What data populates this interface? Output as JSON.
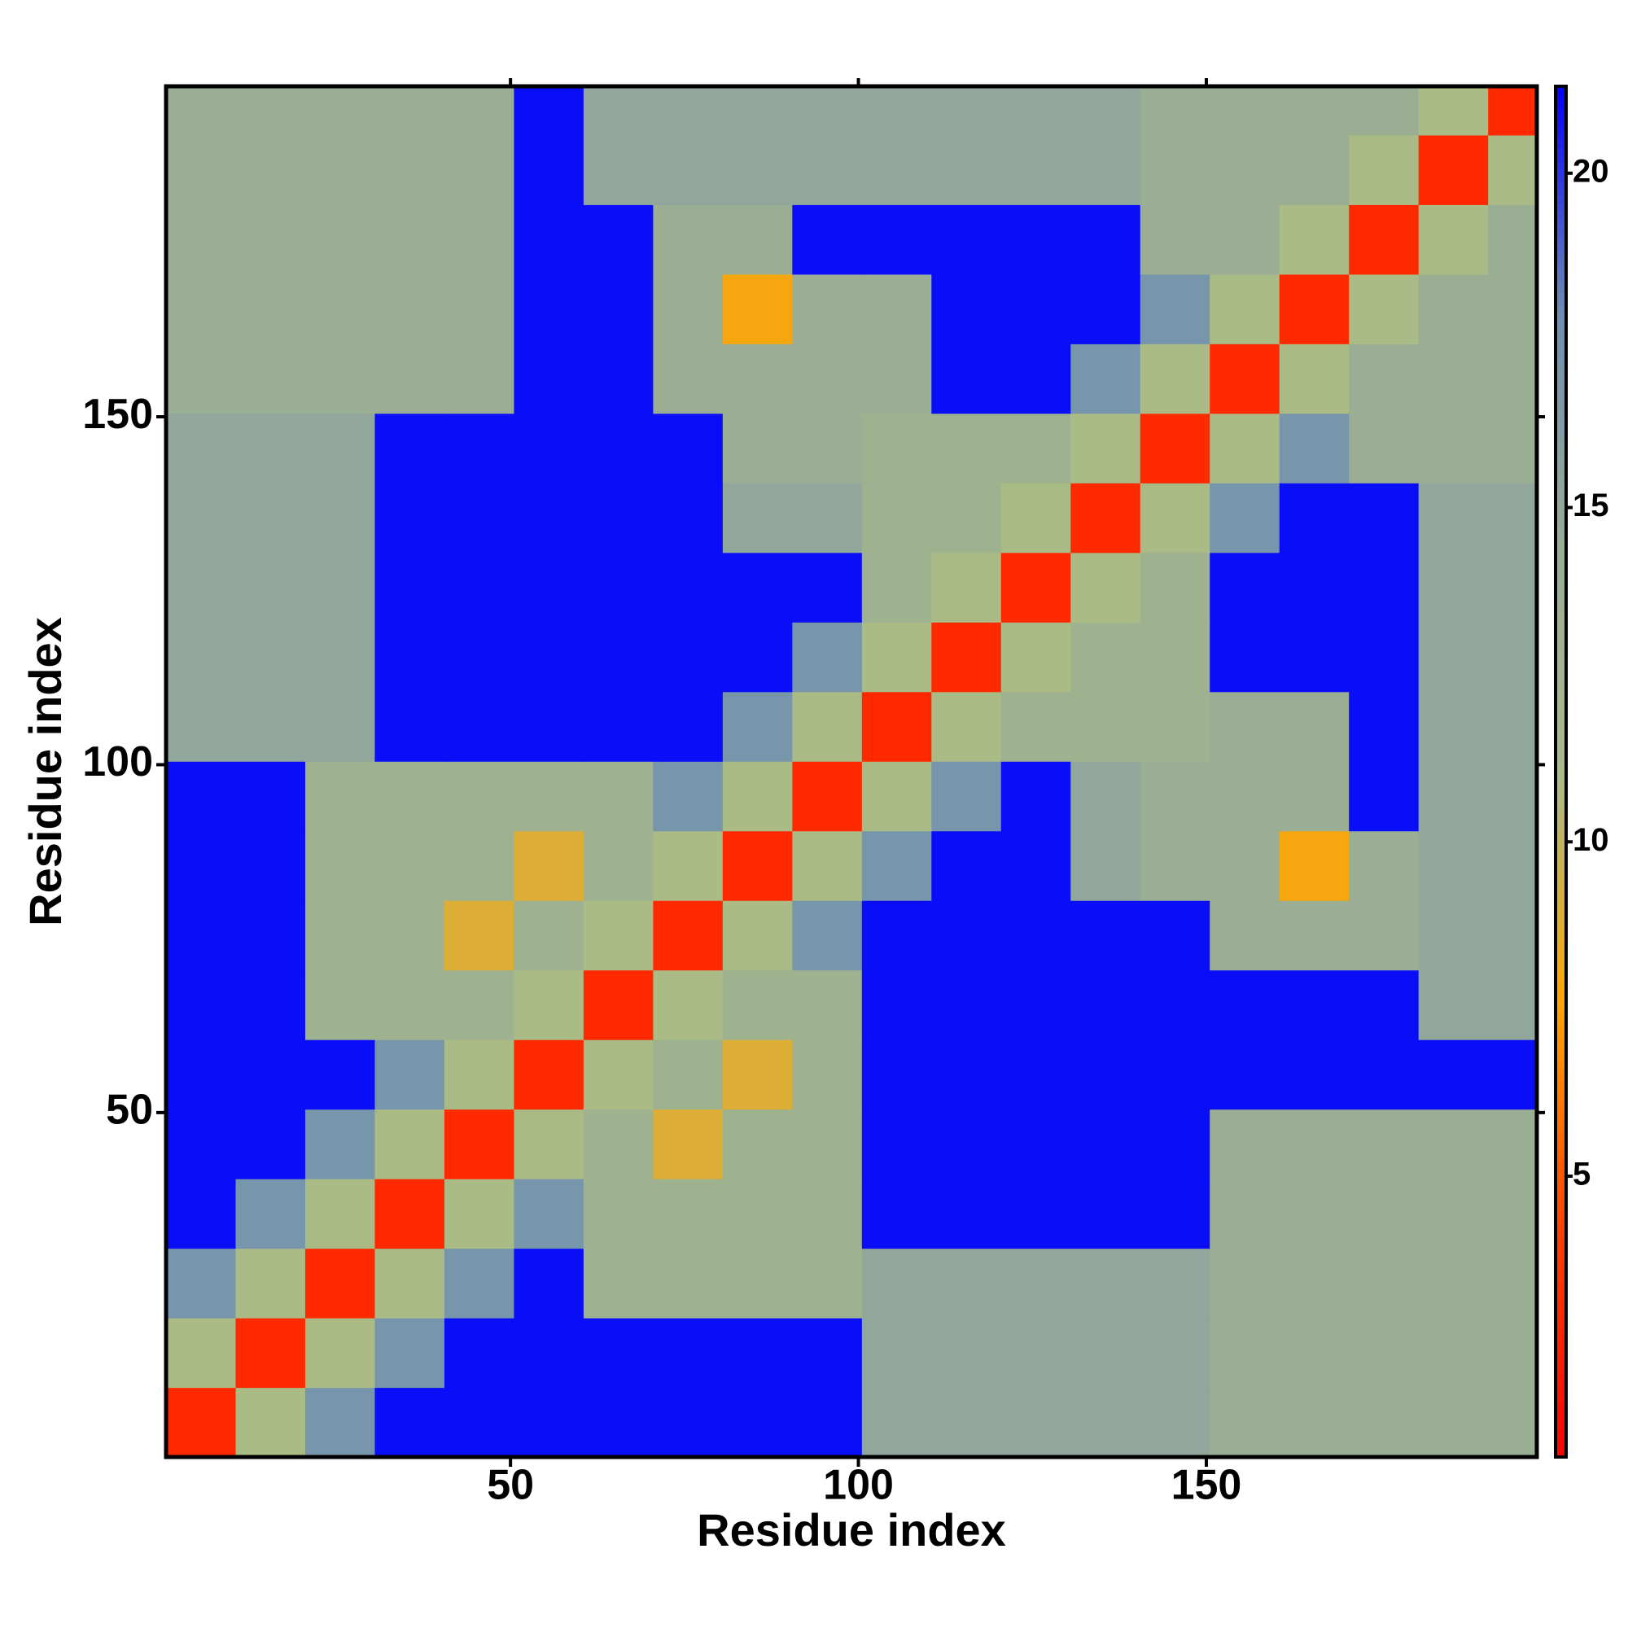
{
  "chart_data": {
    "type": "heatmap",
    "xlabel": "Residue index",
    "ylabel": "Residue index",
    "x": [
      5.5,
      15.5,
      25.5,
      35.5,
      45.5,
      55.5,
      65.5,
      75.5,
      85.5,
      95.5,
      105.5,
      115.5,
      125.5,
      135.5,
      145.5,
      155.5,
      165.5,
      175.5,
      185.5,
      195.5
    ],
    "y": [
      5.5,
      15.5,
      25.5,
      35.5,
      45.5,
      55.5,
      65.5,
      75.5,
      85.5,
      95.5,
      105.5,
      115.5,
      125.5,
      135.5,
      145.5,
      155.5,
      165.5,
      175.5,
      185.5,
      195.5
    ],
    "values": [
      [
        3,
        11,
        17,
        21,
        21,
        21,
        21,
        21,
        21,
        21,
        15,
        15,
        15,
        15,
        15,
        14,
        14,
        14,
        14,
        14
      ],
      [
        11,
        3,
        11,
        17,
        21,
        21,
        21,
        21,
        21,
        21,
        15,
        15,
        15,
        15,
        15,
        14,
        14,
        14,
        14,
        14
      ],
      [
        17,
        11,
        3,
        11,
        17,
        21,
        13,
        13,
        13,
        13,
        15,
        15,
        15,
        15,
        15,
        14,
        14,
        14,
        14,
        14
      ],
      [
        21,
        17,
        11,
        3,
        11,
        17,
        13,
        13,
        13,
        13,
        21,
        21,
        21,
        21,
        21,
        14,
        14,
        14,
        14,
        14
      ],
      [
        21,
        21,
        17,
        11,
        3,
        11,
        13,
        9,
        13,
        13,
        21,
        21,
        21,
        21,
        21,
        14,
        14,
        14,
        14,
        14
      ],
      [
        21,
        21,
        21,
        17,
        11,
        3,
        11,
        13,
        9,
        13,
        21,
        21,
        21,
        21,
        21,
        21,
        21,
        21,
        21,
        21
      ],
      [
        21,
        21,
        13,
        13,
        13,
        11,
        3,
        11,
        13,
        13,
        21,
        21,
        21,
        21,
        21,
        21,
        21,
        21,
        15,
        15
      ],
      [
        21,
        21,
        13,
        13,
        9,
        13,
        11,
        3,
        11,
        17,
        21,
        21,
        21,
        21,
        21,
        14,
        14,
        14,
        15,
        15
      ],
      [
        21,
        21,
        13,
        13,
        13,
        9,
        13,
        11,
        3,
        11,
        17,
        21,
        21,
        15,
        14,
        14,
        8,
        14,
        15,
        15
      ],
      [
        21,
        21,
        13,
        13,
        13,
        13,
        13,
        17,
        11,
        3,
        11,
        17,
        21,
        15,
        14,
        14,
        14,
        21,
        15,
        15
      ],
      [
        15,
        15,
        15,
        21,
        21,
        21,
        21,
        21,
        17,
        11,
        3,
        11,
        13,
        13,
        13,
        14,
        14,
        21,
        15,
        15
      ],
      [
        15,
        15,
        15,
        21,
        21,
        21,
        21,
        21,
        21,
        17,
        11,
        3,
        11,
        13,
        13,
        21,
        21,
        21,
        15,
        15
      ],
      [
        15,
        15,
        15,
        21,
        21,
        21,
        21,
        21,
        21,
        21,
        13,
        11,
        3,
        11,
        13,
        21,
        21,
        21,
        15,
        15
      ],
      [
        15,
        15,
        15,
        21,
        21,
        21,
        21,
        21,
        15,
        15,
        13,
        13,
        11,
        3,
        11,
        17,
        21,
        21,
        15,
        15
      ],
      [
        15,
        15,
        15,
        21,
        21,
        21,
        21,
        21,
        14,
        14,
        13,
        13,
        13,
        11,
        3,
        11,
        17,
        14,
        14,
        14
      ],
      [
        14,
        14,
        14,
        14,
        14,
        21,
        21,
        14,
        14,
        14,
        14,
        21,
        21,
        17,
        11,
        3,
        11,
        14,
        14,
        14
      ],
      [
        14,
        14,
        14,
        14,
        14,
        21,
        21,
        14,
        8,
        14,
        14,
        21,
        21,
        21,
        17,
        11,
        3,
        11,
        14,
        14
      ],
      [
        14,
        14,
        14,
        14,
        14,
        21,
        21,
        14,
        14,
        21,
        21,
        21,
        21,
        21,
        14,
        14,
        11,
        3,
        11,
        14
      ],
      [
        14,
        14,
        14,
        14,
        14,
        21,
        15,
        15,
        15,
        15,
        15,
        15,
        15,
        15,
        14,
        14,
        14,
        11,
        3,
        11
      ],
      [
        14,
        14,
        14,
        14,
        14,
        21,
        15,
        15,
        15,
        15,
        15,
        15,
        15,
        15,
        14,
        14,
        14,
        14,
        11,
        3
      ]
    ],
    "xlim": [
      0.5,
      197.5
    ],
    "ylim": [
      0.5,
      197.5
    ],
    "xticks": [
      50,
      100,
      150
    ],
    "yticks": [
      50,
      100,
      150
    ],
    "zlim": [
      0.8,
      21.3
    ],
    "zticks": [
      5,
      10,
      15,
      20
    ],
    "colormap": [
      "#ff0000",
      "#ff4000",
      "#ffa500",
      "#a9bb88",
      "#98ac96",
      "#6c8fb3",
      "#0000ff"
    ]
  }
}
